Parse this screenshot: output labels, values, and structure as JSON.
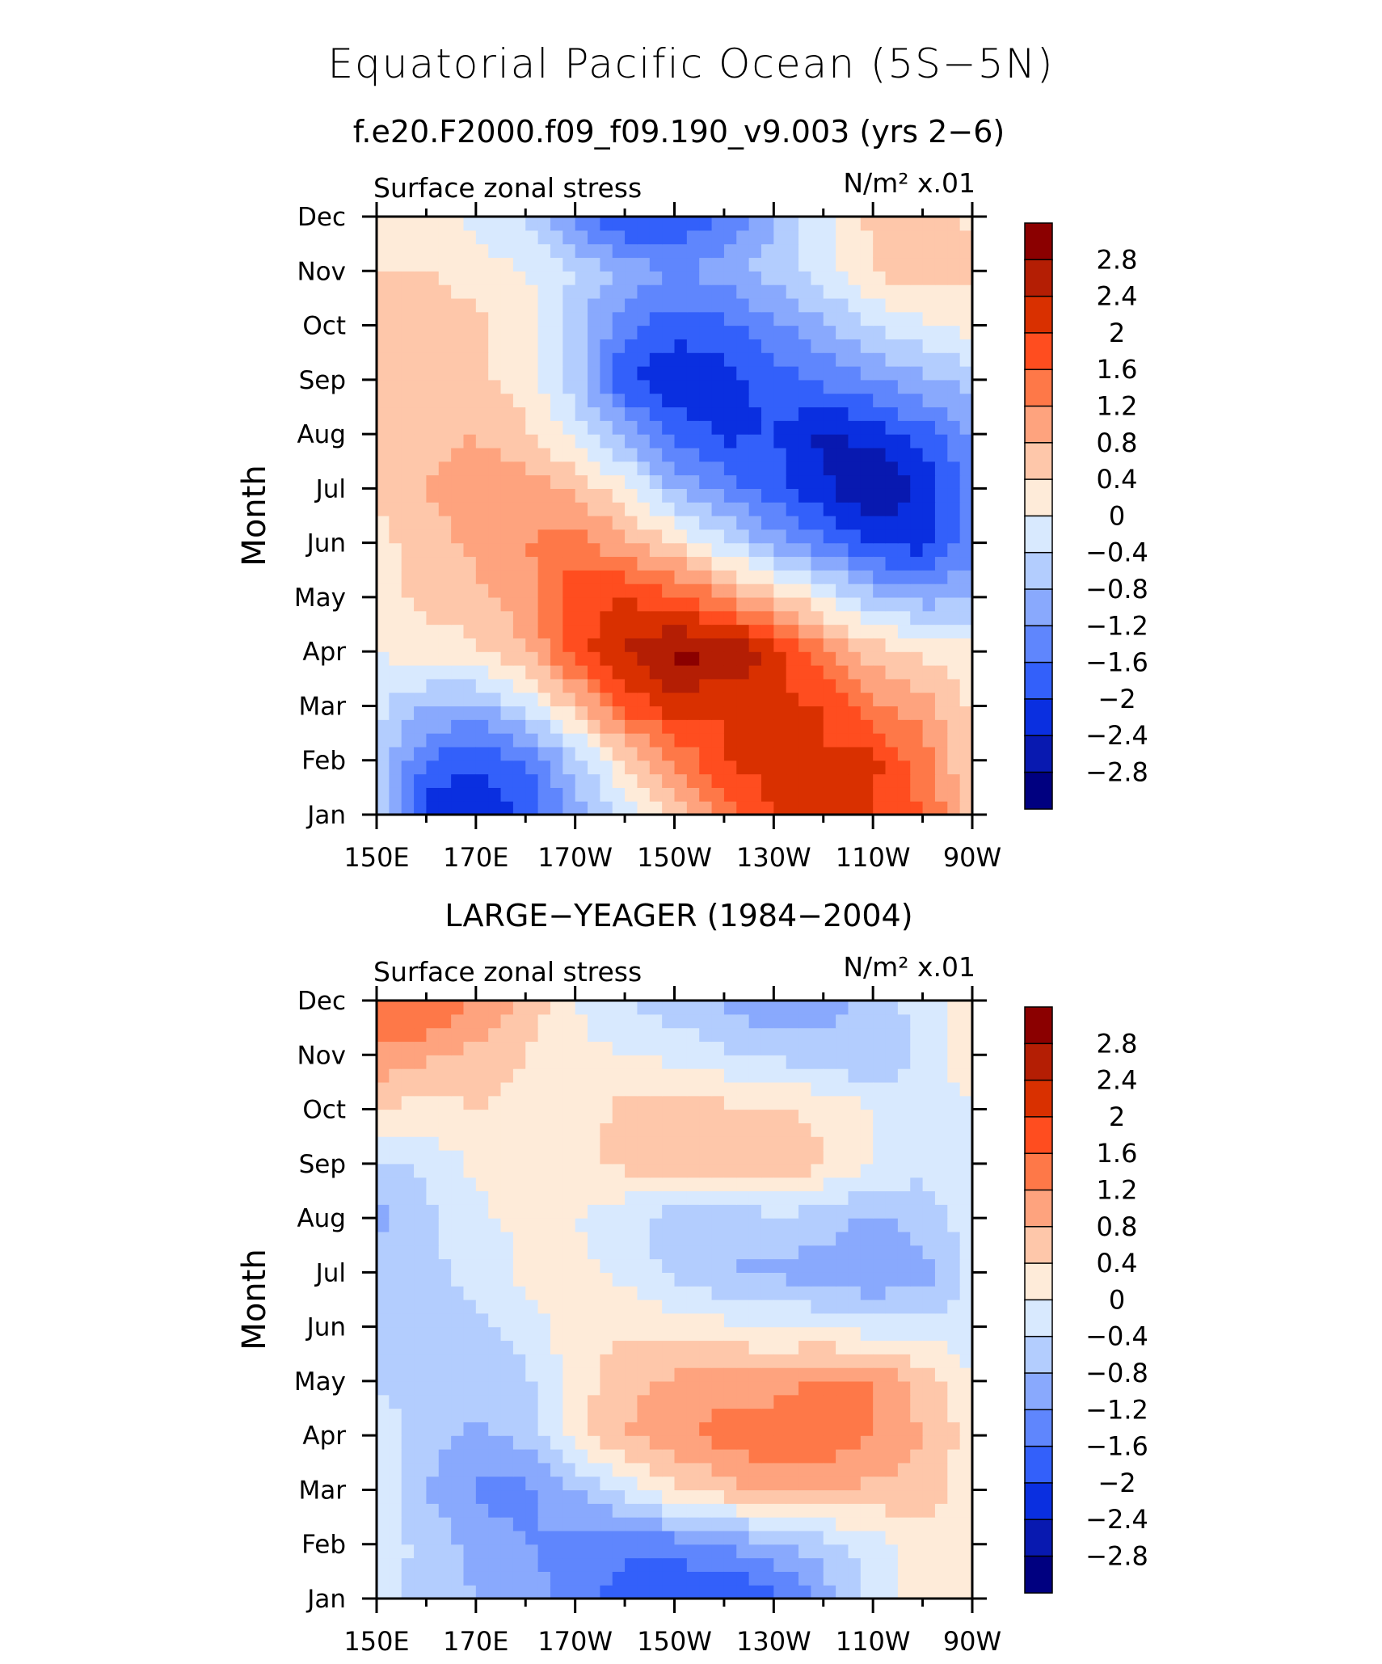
{
  "figure": {
    "title": "Equatorial Pacific Ocean (5S−5N)",
    "subtitle": "f.e20.F2000.f09_f09.190_v9.003 (yrs 2−6)"
  },
  "colorbar": {
    "levels": [
      "2.8",
      "2.4",
      "2",
      "1.6",
      "1.2",
      "0.8",
      "0.4",
      "0",
      "−0.4",
      "−0.8",
      "−1.2",
      "−1.6",
      "−2",
      "−2.4",
      "−2.8"
    ],
    "colors_top_to_bottom": [
      "#8b0000",
      "#b41e04",
      "#d93000",
      "#ff4d1f",
      "#fe7848",
      "#fea37e",
      "#fec7aa",
      "#feebd9",
      "#d8e9fe",
      "#b3cdfe",
      "#89a9fd",
      "#5f86fd",
      "#3360fa",
      "#0a2fe0",
      "#0819b0",
      "#000080"
    ]
  },
  "chart_data": [
    {
      "type": "heatmap",
      "title": "",
      "left_label": "Surface zonal stress",
      "right_label": "N/m² x.01",
      "ylabel": "Month",
      "x_ticks": [
        "150E",
        "170E",
        "170W",
        "150W",
        "130W",
        "110W",
        "90W"
      ],
      "y_ticks": [
        "Jan",
        "Feb",
        "Mar",
        "Apr",
        "May",
        "Jun",
        "Jul",
        "Aug",
        "Sep",
        "Oct",
        "Nov",
        "Dec"
      ],
      "x_range_deg_east": [
        150,
        270
      ],
      "x_grid_deg_east": [
        150,
        160,
        170,
        180,
        190,
        200,
        210,
        220,
        230,
        240,
        250,
        260,
        270
      ],
      "colorbar_levels": [
        -2.8,
        -2.4,
        -2.0,
        -1.6,
        -1.2,
        -0.8,
        -0.4,
        0,
        0.4,
        0.8,
        1.2,
        1.6,
        2.0,
        2.4,
        2.8
      ],
      "z_rows_jan_to_dec": [
        [
          -0.6,
          -2.2,
          -2.3,
          -2.0,
          -1.0,
          -0.2,
          0.6,
          1.4,
          2.0,
          2.2,
          2.0,
          1.6,
          0.6
        ],
        [
          -0.5,
          -1.6,
          -2.0,
          -1.6,
          -0.6,
          0.4,
          1.2,
          2.0,
          2.2,
          2.0,
          2.1,
          1.4,
          0.4
        ],
        [
          -0.3,
          -0.8,
          -0.9,
          -0.3,
          0.6,
          1.7,
          2.2,
          2.0,
          2.1,
          2.0,
          1.3,
          1.0,
          0.3
        ],
        [
          0.0,
          0.2,
          0.3,
          0.8,
          1.8,
          2.4,
          2.9,
          2.9,
          2.2,
          1.3,
          0.6,
          0.3,
          0.1
        ],
        [
          0.2,
          0.5,
          0.7,
          1.0,
          1.9,
          2.0,
          1.7,
          1.2,
          0.6,
          0.0,
          -0.7,
          -1.0,
          -0.8
        ],
        [
          0.3,
          0.6,
          0.9,
          1.2,
          1.4,
          0.9,
          0.4,
          -0.3,
          -1.0,
          -1.5,
          -2.0,
          -2.2,
          -1.4
        ],
        [
          0.4,
          0.8,
          1.0,
          1.0,
          0.7,
          0.1,
          -0.8,
          -1.4,
          -1.8,
          -2.3,
          -2.9,
          -2.3,
          -1.4
        ],
        [
          0.4,
          0.7,
          0.8,
          0.5,
          -0.1,
          -0.9,
          -1.7,
          -2.1,
          -2.0,
          -2.5,
          -2.2,
          -1.8,
          -1.2
        ],
        [
          0.5,
          0.6,
          0.5,
          0.2,
          -0.6,
          -1.9,
          -2.4,
          -2.2,
          -1.8,
          -1.5,
          -1.2,
          -0.9,
          -0.6
        ],
        [
          0.5,
          0.6,
          0.5,
          0.2,
          -0.6,
          -1.5,
          -1.8,
          -1.7,
          -1.3,
          -0.9,
          -0.4,
          -0.1,
          0.2
        ],
        [
          0.4,
          0.4,
          0.2,
          0.0,
          -0.4,
          -0.9,
          -1.2,
          -1.0,
          -0.6,
          -0.2,
          0.4,
          0.7,
          0.5
        ],
        [
          0.3,
          0.1,
          -0.1,
          -0.4,
          -1.4,
          -2.0,
          -2.0,
          -1.6,
          -0.8,
          -0.1,
          0.5,
          0.8,
          0.3
        ]
      ]
    },
    {
      "type": "heatmap",
      "title": "LARGE−YEAGER (1984−2004)",
      "left_label": "Surface zonal stress",
      "right_label": "N/m² x.01",
      "ylabel": "Month",
      "x_ticks": [
        "150E",
        "170E",
        "170W",
        "150W",
        "130W",
        "110W",
        "90W"
      ],
      "y_ticks": [
        "Jan",
        "Feb",
        "Mar",
        "Apr",
        "May",
        "Jun",
        "Jul",
        "Aug",
        "Sep",
        "Oct",
        "Nov",
        "Dec"
      ],
      "x_range_deg_east": [
        150,
        270
      ],
      "x_grid_deg_east": [
        150,
        160,
        170,
        180,
        190,
        200,
        210,
        220,
        230,
        240,
        250,
        260,
        270
      ],
      "colorbar_levels": [
        -2.8,
        -2.4,
        -2.0,
        -1.6,
        -1.2,
        -0.8,
        -0.4,
        0,
        0.4,
        0.8,
        1.2,
        1.6,
        2.0,
        2.4,
        2.8
      ],
      "z_rows_jan_to_dec": [
        [
          -0.3,
          -0.5,
          -0.8,
          -1.0,
          -1.4,
          -1.8,
          -2.0,
          -2.1,
          -1.8,
          -1.0,
          -0.3,
          0.2,
          0.1
        ],
        [
          -0.2,
          -0.5,
          -1.0,
          -1.2,
          -1.3,
          -1.5,
          -1.4,
          -1.2,
          -0.9,
          -0.6,
          -0.2,
          0.3,
          0.2
        ],
        [
          0.0,
          -0.8,
          -1.3,
          -1.3,
          -0.8,
          -0.3,
          0.3,
          0.6,
          0.9,
          0.9,
          0.7,
          0.6,
          0.2
        ],
        [
          -0.2,
          -0.6,
          -0.9,
          -0.7,
          0.2,
          0.8,
          1.1,
          1.4,
          1.5,
          1.5,
          1.2,
          0.8,
          0.2
        ],
        [
          -0.4,
          -0.6,
          -0.7,
          -0.5,
          0.2,
          0.7,
          0.9,
          1.0,
          1.0,
          1.3,
          1.2,
          0.6,
          0.0
        ],
        [
          -0.5,
          -0.6,
          -0.5,
          -0.2,
          0.2,
          0.3,
          0.2,
          0.1,
          0.0,
          -0.1,
          -0.2,
          -0.2,
          -0.2
        ],
        [
          -0.5,
          -0.5,
          -0.3,
          0.1,
          0.1,
          -0.1,
          -0.5,
          -0.8,
          -0.9,
          -1.0,
          -1.2,
          -1.0,
          -0.3
        ],
        [
          -1.0,
          -0.5,
          -0.1,
          0.1,
          0.0,
          -0.3,
          -0.6,
          -0.7,
          -0.5,
          -0.6,
          -0.9,
          -0.6,
          -0.2
        ],
        [
          -0.5,
          -0.3,
          0.1,
          0.3,
          0.3,
          0.5,
          0.6,
          0.7,
          0.8,
          0.4,
          0.0,
          -0.3,
          -0.1
        ],
        [
          0.4,
          0.2,
          0.4,
          0.2,
          0.2,
          0.5,
          0.6,
          0.5,
          0.5,
          0.3,
          0.0,
          -0.3,
          0.0
        ],
        [
          1.1,
          0.9,
          0.7,
          0.4,
          0.1,
          0.0,
          -0.1,
          -0.3,
          -0.5,
          -0.6,
          -0.8,
          -0.3,
          0.3
        ],
        [
          1.5,
          1.7,
          1.1,
          0.7,
          0.0,
          -0.4,
          -0.7,
          -0.9,
          -1.3,
          -1.0,
          -0.6,
          -0.2,
          0.2
        ]
      ]
    }
  ]
}
